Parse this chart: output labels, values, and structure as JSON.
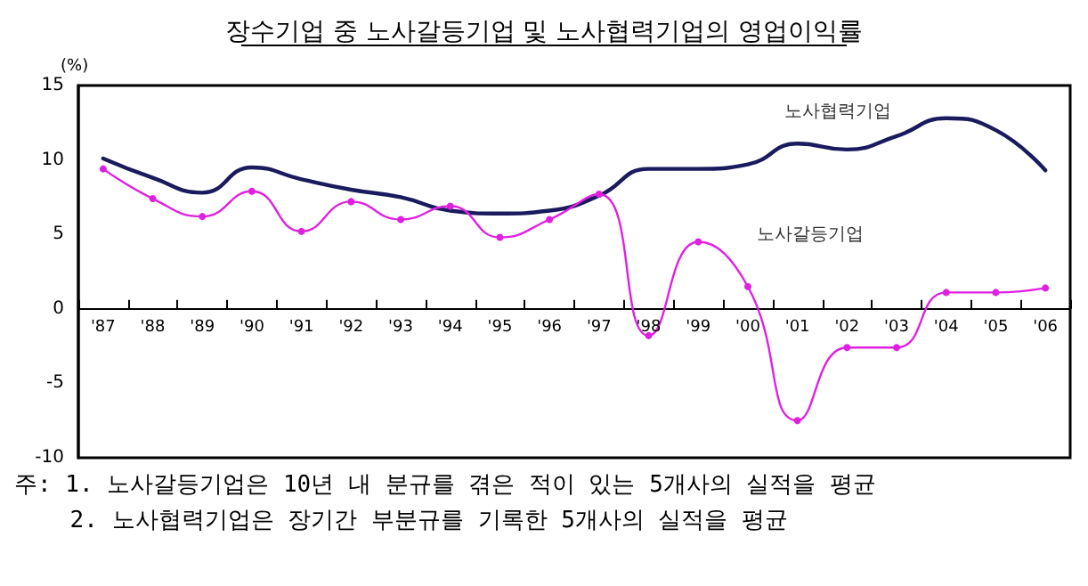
{
  "chart_data": {
    "type": "line",
    "title": "장수기업 중 노사갈등기업 및 노사협력기업의 영업이익률",
    "ylabel": "(%)",
    "categories": [
      "'87",
      "'88",
      "'89",
      "'90",
      "'91",
      "'92",
      "'93",
      "'94",
      "'95",
      "'96",
      "'97",
      "'98",
      "'99",
      "'00",
      "'01",
      "'02",
      "'03",
      "'04",
      "'05",
      "'06"
    ],
    "series": [
      {
        "name": "노사협력기업",
        "color": "#1a1a5e",
        "marker": "none",
        "values": [
          10.1,
          8.8,
          7.8,
          9.5,
          8.7,
          8.0,
          7.5,
          6.6,
          6.4,
          6.6,
          7.6,
          9.4,
          9.4,
          9.7,
          11.1,
          10.7,
          11.6,
          12.8,
          12.0,
          9.3
        ]
      },
      {
        "name": "노사갈등기업",
        "color": "#e020e0",
        "values": [
          9.4,
          7.4,
          6.2,
          7.9,
          5.2,
          7.2,
          6.0,
          6.9,
          4.8,
          6.0,
          7.7,
          -1.8,
          4.5,
          1.5,
          -7.5,
          -2.6,
          -2.6,
          1.1,
          1.1,
          1.4
        ]
      }
    ],
    "ylim": [
      -10,
      15
    ],
    "yticks": [
      -10,
      -5,
      0,
      5,
      10,
      15
    ],
    "grid": false,
    "legend": false,
    "marker": "circle",
    "line_style": "solid",
    "annotations": [
      "주: 1. 노사갈등기업은 10년 내 분규를 겪은 적이 있는 5개사의 실적을 평균",
      "    2. 노사협력기업은 장기간 부분규를 기록한 5개사의 실적을 평균"
    ]
  }
}
